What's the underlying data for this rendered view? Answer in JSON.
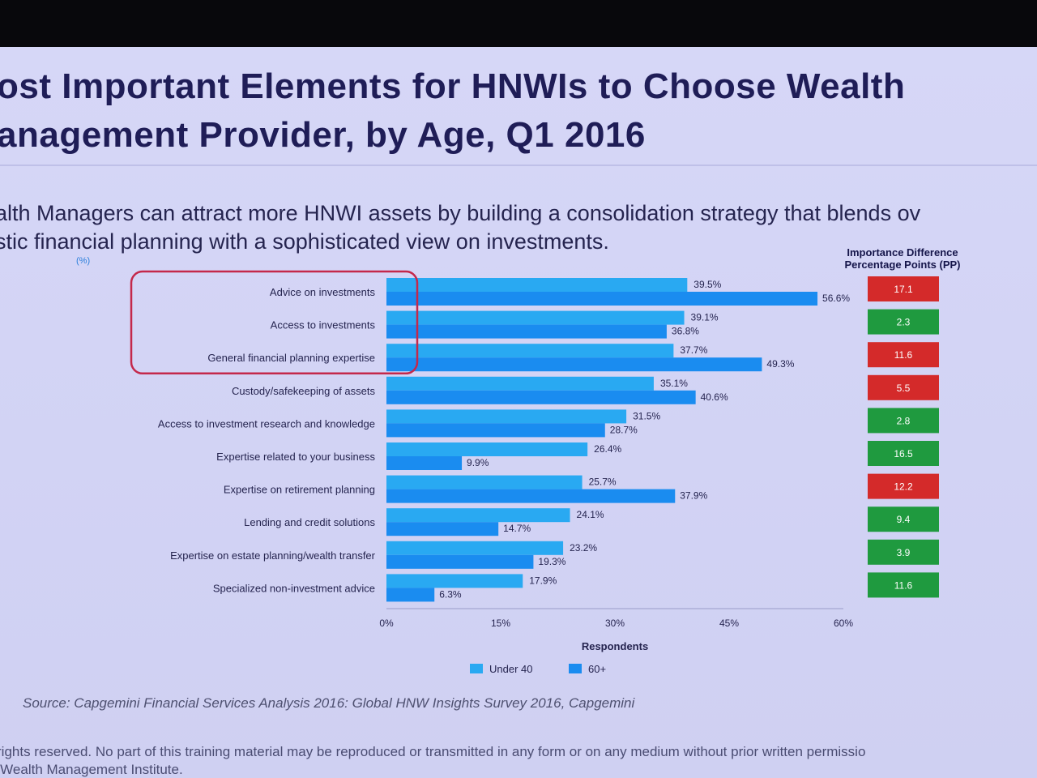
{
  "title_line1": "ost Important Elements for HNWIs to Choose Wealth",
  "title_line2": "anagement Provider, by Age, Q1 2016",
  "subtitle_line1": "alth Managers can attract more HNWI assets by building a consolidation strategy that blends ov",
  "subtitle_line2": "stic financial planning with a sophisticated view on investments.",
  "unit_label": "(%)",
  "pp_header_line1": "Importance Difference",
  "pp_header_line2": "Percentage Points (PP)",
  "source": "Source: Capgemini Financial Services Analysis 2016: Global HNW Insights Survey 2016, Capgemini",
  "footer_line1": "rights reserved. No part of this training material may be reproduced or transmitted in any form or on any medium without prior written permissio",
  "footer_line2": "e Wealth Management Institute.",
  "colors": {
    "under40": "#29a9f2",
    "over60": "#1a8cf0",
    "pp_red": "#d42a2a",
    "pp_green": "#1f9a3f",
    "highlight": "#c4284b",
    "text": "#25244f"
  },
  "chart_data": {
    "type": "bar",
    "orientation": "horizontal",
    "categories": [
      "Advice on investments",
      "Access to investments",
      "General financial planning expertise",
      "Custody/safekeeping of assets",
      "Access to investment research and knowledge",
      "Expertise related to your business",
      "Expertise on retirement planning",
      "Lending and credit solutions",
      "Expertise on estate planning/wealth transfer",
      "Specialized non-investment advice"
    ],
    "series": [
      {
        "name": "Under 40",
        "values": [
          39.5,
          39.1,
          37.7,
          35.1,
          31.5,
          26.4,
          25.7,
          24.1,
          23.2,
          17.9
        ],
        "labels": [
          "39.5%",
          "39.1%",
          "37.7%",
          "35.1%",
          "31.5%",
          "26.4%",
          "25.7%",
          "24.1%",
          "23.2%",
          "17.9%"
        ]
      },
      {
        "name": "60+",
        "values": [
          56.6,
          36.8,
          49.3,
          40.6,
          28.7,
          9.9,
          37.9,
          14.7,
          19.3,
          6.3
        ],
        "labels": [
          "56.6%",
          "36.8%",
          "49.3%",
          "40.6%",
          "28.7%",
          "9.9%",
          "37.9%",
          "14.7%",
          "19.3%",
          "6.3%"
        ]
      }
    ],
    "importance_difference_pp": [
      17.1,
      2.3,
      11.6,
      5.5,
      2.8,
      16.5,
      12.2,
      9.4,
      3.9,
      11.6
    ],
    "importance_difference_labels": [
      "17.1",
      "2.3",
      "11.6",
      "5.5",
      "2.8",
      "16.5",
      "12.2",
      "9.4",
      "3.9",
      "11.6"
    ],
    "importance_difference_color": [
      "red",
      "green",
      "red",
      "red",
      "green",
      "green",
      "red",
      "green",
      "green",
      "green"
    ],
    "highlighted_categories": [
      0,
      1,
      2
    ],
    "xlabel": "Respondents",
    "ylabel": "",
    "xlim": [
      0,
      60
    ],
    "xticks": [
      0,
      15,
      30,
      45,
      60
    ],
    "xtick_labels": [
      "0%",
      "15%",
      "30%",
      "45%",
      "60%"
    ],
    "legend_position": "bottom",
    "grid": false
  }
}
